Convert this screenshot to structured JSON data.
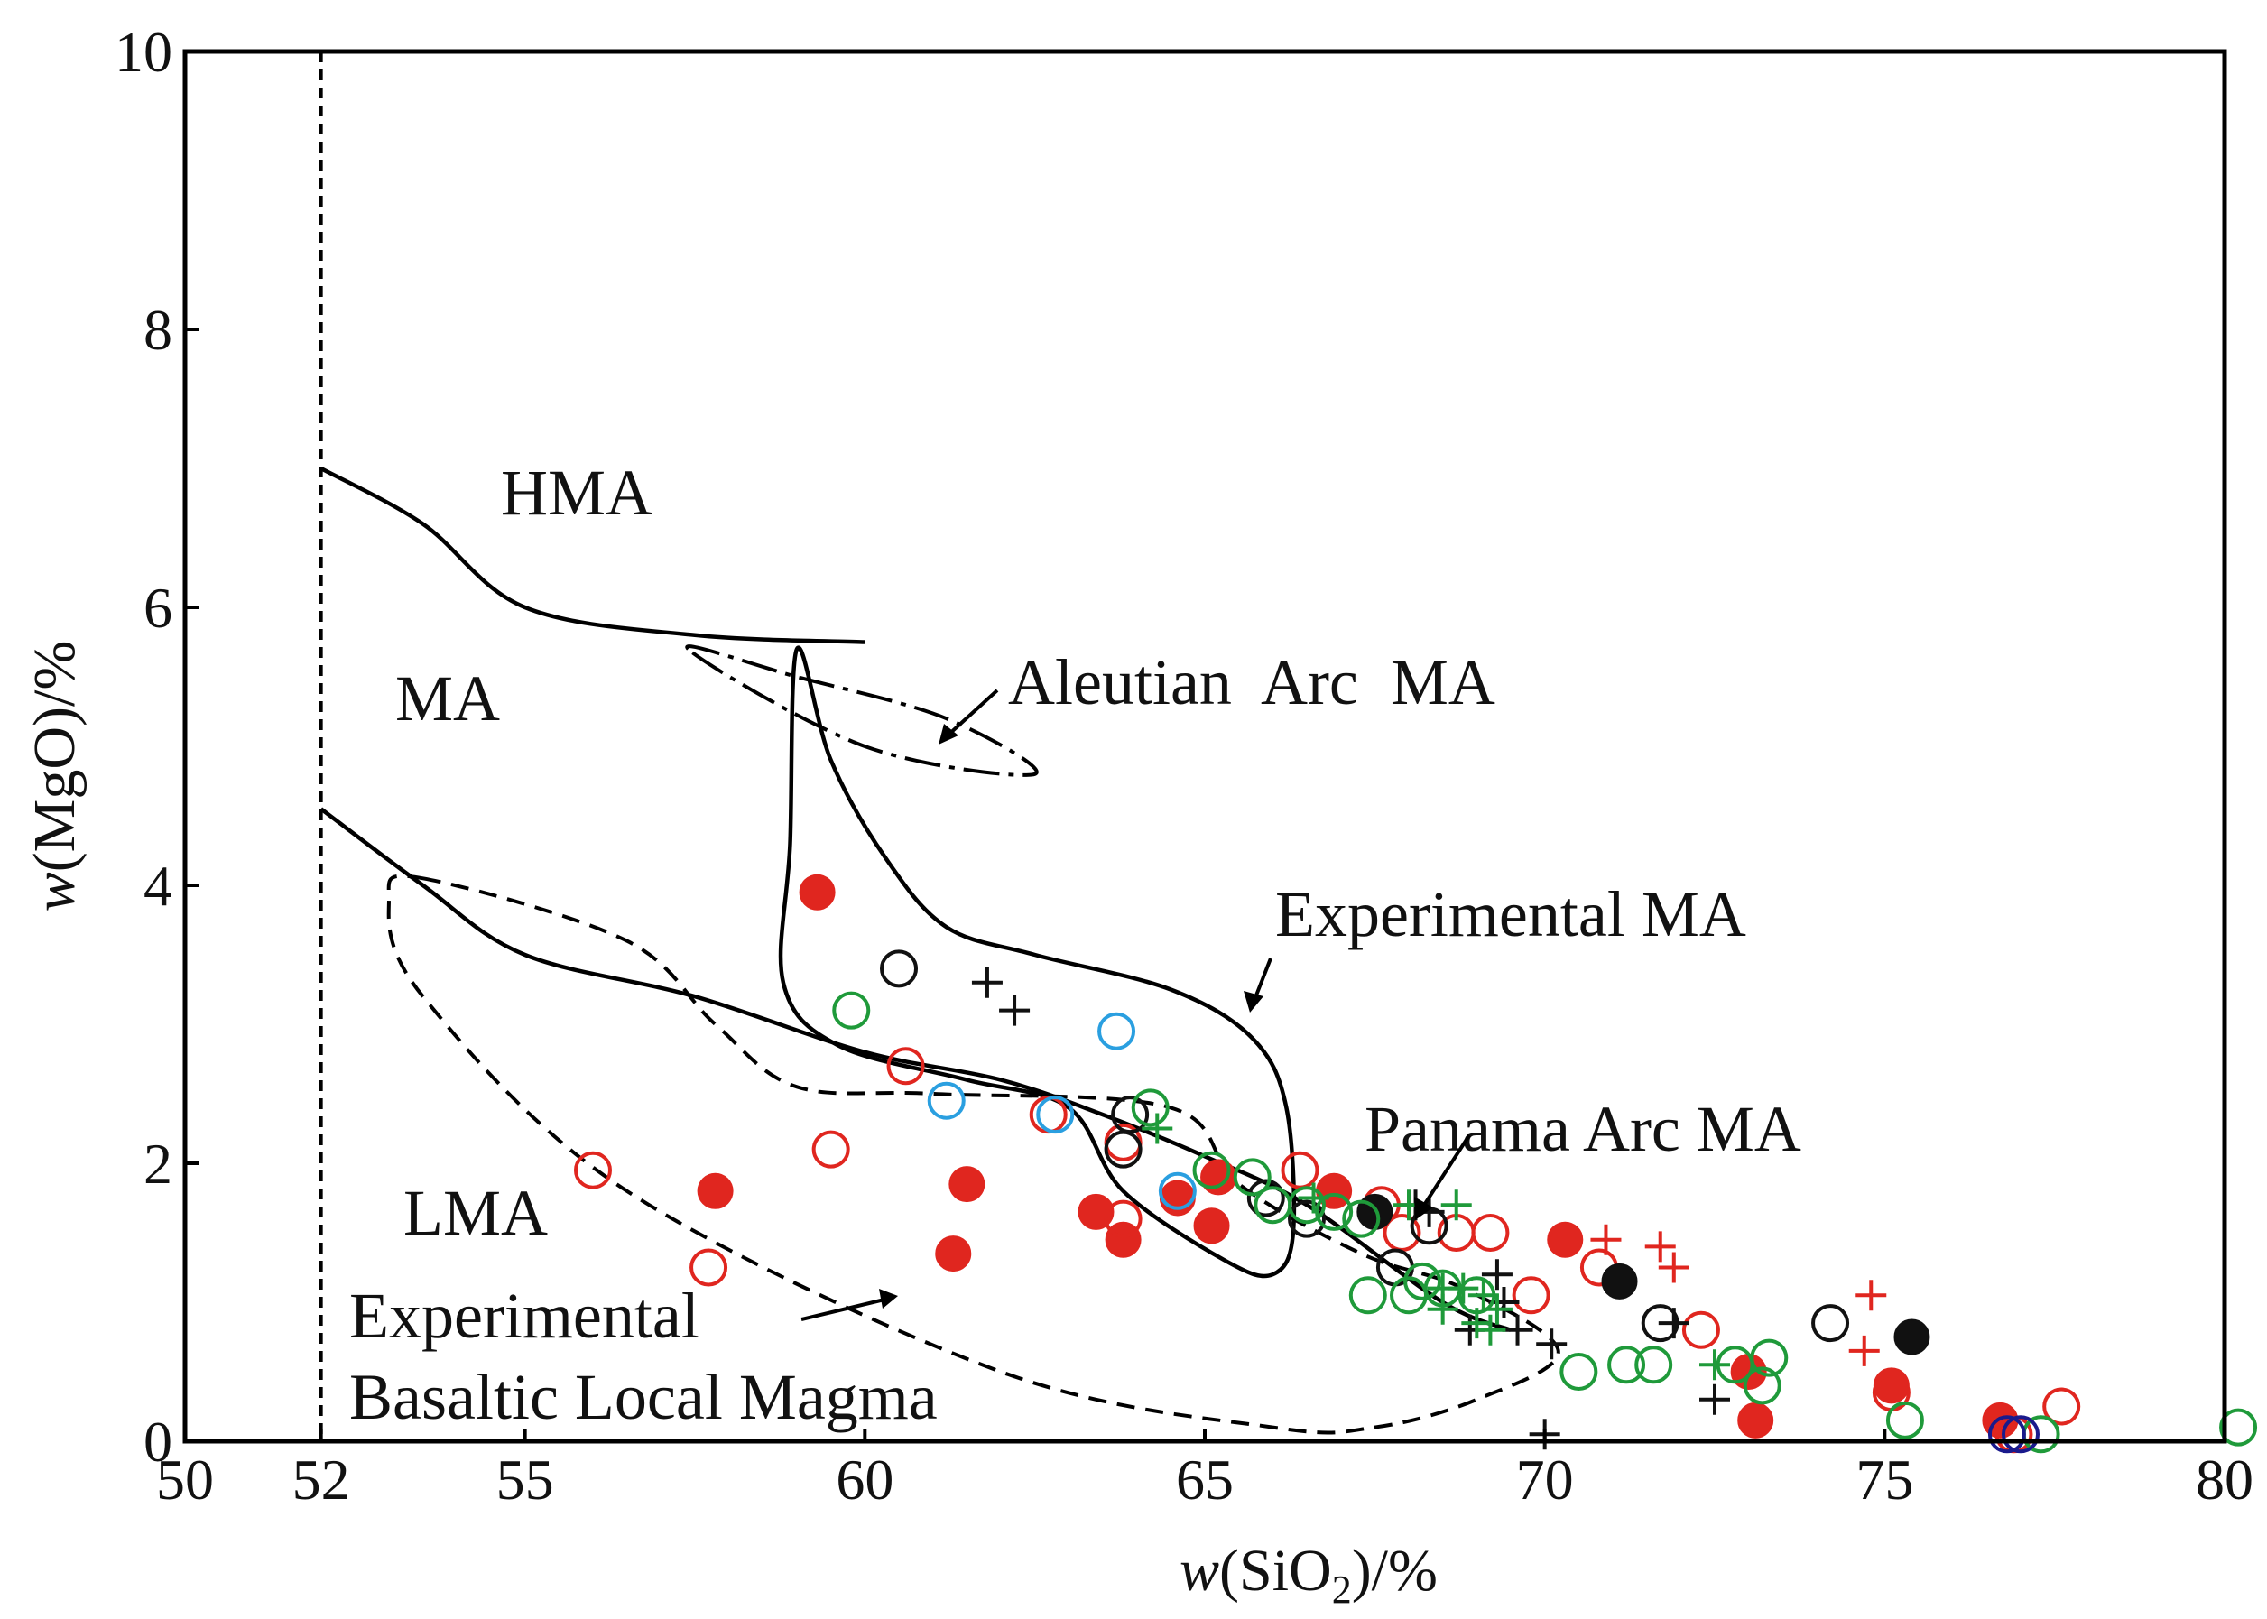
{
  "chart_data": {
    "type": "scatter",
    "xlabel_prefix": "w",
    "xlabel_rest": "(SiO",
    "xlabel_sub": "2",
    "xlabel_suffix": ")/%",
    "ylabel_prefix": "w",
    "ylabel_rest": "(MgO)/%",
    "xlim": [
      50,
      80
    ],
    "ylim": [
      0,
      10
    ],
    "xticks": [
      50,
      52,
      55,
      60,
      65,
      70,
      75,
      80
    ],
    "yticks": [
      0,
      2,
      4,
      6,
      8,
      10
    ],
    "reference_line_x": 52,
    "labels": {
      "hma": "HMA",
      "ma": "MA",
      "lma": "LMA",
      "aleutian": "Aleutian  Arc  MA",
      "experimental_ma": "Experimental MA",
      "panama": "Panama Arc MA",
      "exp_basaltic_1": "Experimental",
      "exp_basaltic_2": "Basaltic Local Magma"
    },
    "colors": {
      "red": "#e0261f",
      "black": "#111111",
      "green": "#1f9a3a",
      "blue": "#2a9fe0",
      "navy": "#1a1a8c"
    },
    "boundaries": {
      "hma_ma": [
        [
          52,
          7.0
        ],
        [
          53.5,
          6.6
        ],
        [
          55,
          6.0
        ],
        [
          57.5,
          5.8
        ],
        [
          60,
          5.75
        ]
      ],
      "ma_lma": [
        [
          52,
          4.55
        ],
        [
          53.5,
          4.0
        ],
        [
          55,
          3.5
        ],
        [
          57.5,
          3.2
        ],
        [
          60,
          2.8
        ],
        [
          62,
          2.6
        ],
        [
          63.5,
          2.35
        ],
        [
          65,
          2.05
        ],
        [
          66.5,
          1.7
        ],
        [
          68.5,
          1.0
        ],
        [
          69.5,
          0.8
        ]
      ],
      "experimental_ma": [
        [
          59.0,
          5.7
        ],
        [
          59.5,
          4.9
        ],
        [
          60.3,
          4.2
        ],
        [
          61.2,
          3.7
        ],
        [
          62.5,
          3.5
        ],
        [
          64.5,
          3.25
        ],
        [
          65.7,
          2.9
        ],
        [
          66.2,
          2.4
        ],
        [
          66.3,
          1.5
        ],
        [
          66.0,
          1.2
        ],
        [
          65.3,
          1.3
        ],
        [
          63.8,
          1.8
        ],
        [
          63.0,
          2.4
        ],
        [
          61.5,
          2.6
        ],
        [
          59.6,
          2.85
        ],
        [
          58.8,
          3.3
        ],
        [
          58.9,
          4.3
        ],
        [
          59.0,
          5.7
        ]
      ],
      "aleutian": [
        [
          57.4,
          5.7
        ],
        [
          59.0,
          5.5
        ],
        [
          61.2,
          5.2
        ],
        [
          62.5,
          4.8
        ],
        [
          60.0,
          5.0
        ],
        [
          57.4,
          5.7
        ]
      ],
      "exp_basaltic": [
        [
          53.5,
          4.05
        ],
        [
          56.5,
          3.6
        ],
        [
          57.8,
          3.0
        ],
        [
          59.0,
          2.55
        ],
        [
          61.0,
          2.5
        ],
        [
          64.5,
          2.4
        ],
        [
          65.5,
          1.85
        ],
        [
          67.3,
          1.35
        ],
        [
          68.8,
          1.1
        ],
        [
          70.2,
          0.65
        ],
        [
          69.0,
          0.3
        ],
        [
          67.5,
          0.1
        ],
        [
          66.0,
          0.1
        ],
        [
          62.0,
          0.5
        ],
        [
          56.5,
          1.8
        ],
        [
          53.5,
          3.2
        ],
        [
          53.0,
          3.9
        ],
        [
          53.5,
          4.05
        ]
      ]
    },
    "series": [
      {
        "name": "red-filled",
        "marker": "filled-circle",
        "color": "red",
        "points": [
          [
            59.3,
            3.95
          ],
          [
            57.8,
            1.8
          ],
          [
            61.5,
            1.85
          ],
          [
            61.3,
            1.35
          ],
          [
            63.4,
            1.65
          ],
          [
            63.8,
            1.45
          ],
          [
            64.6,
            1.75
          ],
          [
            65.1,
            1.55
          ],
          [
            65.2,
            1.9
          ],
          [
            66.9,
            1.8
          ],
          [
            70.3,
            1.45
          ],
          [
            73.0,
            0.5
          ],
          [
            73.1,
            0.15
          ],
          [
            75.1,
            0.4
          ],
          [
            76.7,
            0.15
          ]
        ]
      },
      {
        "name": "red-open",
        "marker": "open-circle",
        "color": "red",
        "points": [
          [
            56.0,
            1.95
          ],
          [
            57.7,
            1.25
          ],
          [
            59.5,
            2.1
          ],
          [
            60.6,
            2.7
          ],
          [
            62.7,
            2.35
          ],
          [
            63.8,
            2.15
          ],
          [
            63.8,
            1.6
          ],
          [
            66.4,
            1.95
          ],
          [
            67.6,
            1.7
          ],
          [
            67.9,
            1.5
          ],
          [
            68.7,
            1.5
          ],
          [
            69.2,
            1.5
          ],
          [
            69.8,
            1.05
          ],
          [
            70.8,
            1.25
          ],
          [
            72.3,
            0.8
          ],
          [
            75.1,
            0.35
          ],
          [
            77.6,
            0.25
          ],
          [
            76.9,
            0.05
          ]
        ]
      },
      {
        "name": "red-plus",
        "marker": "plus",
        "color": "red",
        "points": [
          [
            70.9,
            1.45
          ],
          [
            71.7,
            1.4
          ],
          [
            71.9,
            1.25
          ],
          [
            74.8,
            1.05
          ],
          [
            74.7,
            0.65
          ]
        ]
      },
      {
        "name": "black-filled",
        "marker": "filled-circle",
        "color": "black",
        "points": [
          [
            67.5,
            1.65
          ],
          [
            71.1,
            1.15
          ],
          [
            75.4,
            0.75
          ]
        ]
      },
      {
        "name": "black-open",
        "marker": "open-circle",
        "color": "black",
        "points": [
          [
            60.5,
            3.4
          ],
          [
            63.9,
            2.35
          ],
          [
            63.8,
            2.1
          ],
          [
            65.9,
            1.75
          ],
          [
            66.5,
            1.6
          ],
          [
            68.3,
            1.55
          ],
          [
            67.8,
            1.25
          ],
          [
            71.7,
            0.85
          ],
          [
            74.2,
            0.85
          ]
        ]
      },
      {
        "name": "black-plus",
        "marker": "plus",
        "color": "black",
        "points": [
          [
            61.8,
            3.3
          ],
          [
            62.2,
            3.1
          ],
          [
            68.1,
            1.7
          ],
          [
            68.3,
            1.65
          ],
          [
            69.3,
            1.2
          ],
          [
            69.4,
            1.0
          ],
          [
            68.9,
            0.8
          ],
          [
            69.6,
            0.8
          ],
          [
            70.1,
            0.7
          ],
          [
            71.9,
            0.85
          ],
          [
            72.5,
            0.3
          ],
          [
            70.0,
            0.05
          ]
        ]
      },
      {
        "name": "green-open",
        "marker": "open-circle",
        "color": "green",
        "points": [
          [
            59.8,
            3.1
          ],
          [
            64.2,
            2.4
          ],
          [
            65.7,
            1.9
          ],
          [
            66.5,
            1.7
          ],
          [
            66.9,
            1.65
          ],
          [
            67.3,
            1.6
          ],
          [
            67.4,
            1.05
          ],
          [
            68.0,
            1.05
          ],
          [
            68.2,
            1.15
          ],
          [
            68.5,
            1.1
          ],
          [
            69.0,
            1.05
          ],
          [
            70.5,
            0.5
          ],
          [
            71.2,
            0.55
          ],
          [
            71.6,
            0.55
          ],
          [
            72.8,
            0.55
          ],
          [
            73.2,
            0.4
          ],
          [
            73.3,
            0.6
          ],
          [
            75.3,
            0.15
          ],
          [
            77.3,
            0.05
          ],
          [
            80.2,
            0.1
          ],
          [
            65.1,
            1.95
          ],
          [
            66.0,
            1.7
          ]
        ]
      },
      {
        "name": "green-plus",
        "marker": "plus",
        "color": "green",
        "points": [
          [
            64.3,
            2.25
          ],
          [
            66.6,
            1.75
          ],
          [
            68.0,
            1.7
          ],
          [
            68.7,
            1.7
          ],
          [
            68.5,
            1.1
          ],
          [
            68.8,
            1.1
          ],
          [
            69.1,
            1.05
          ],
          [
            69.3,
            0.95
          ],
          [
            69.2,
            0.8
          ],
          [
            69.0,
            0.85
          ],
          [
            68.5,
            0.95
          ],
          [
            72.5,
            0.55
          ]
        ]
      },
      {
        "name": "blue-open",
        "marker": "open-circle",
        "color": "blue",
        "points": [
          [
            61.2,
            2.45
          ],
          [
            62.8,
            2.35
          ],
          [
            63.7,
            2.95
          ],
          [
            64.6,
            1.8
          ]
        ]
      },
      {
        "name": "navy-open",
        "marker": "open-circle",
        "color": "navy",
        "points": [
          [
            76.8,
            0.05
          ],
          [
            77.0,
            0.05
          ]
        ]
      }
    ]
  }
}
